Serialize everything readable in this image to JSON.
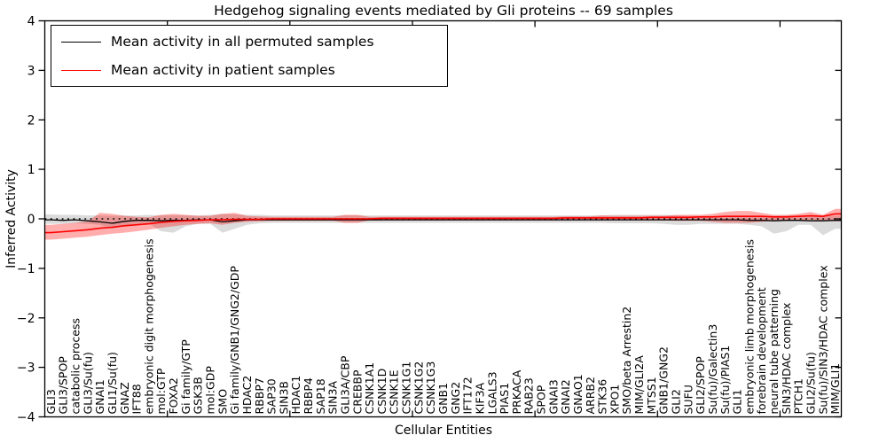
{
  "title": "Hedgehog signaling events mediated by Gli proteins -- 69 samples",
  "legend": {
    "entries": [
      {
        "label": "Mean activity in all permuted samples",
        "color": "#000000"
      },
      {
        "label": "Mean activity in patient samples",
        "color": "#ff0000"
      }
    ]
  },
  "axes": {
    "xlabel": "Cellular Entities",
    "ylabel": "Inferred Activity",
    "yticks": [
      "4",
      "3",
      "2",
      "1",
      "0",
      "−1",
      "−2",
      "−3",
      "−4"
    ],
    "ylim": [
      -4,
      4
    ]
  },
  "chart_data": {
    "type": "line",
    "title": "Hedgehog signaling events mediated by Gli proteins -- 69 samples",
    "xlabel": "Cellular Entities",
    "ylabel": "Inferred Activity",
    "ylim": [
      -4,
      4
    ],
    "grid": false,
    "legend_position": "upper left",
    "zero_reference_line": true,
    "categories": [
      "GLI3",
      "GLI3/SPOP",
      "catabolic process",
      "GLI3/Su(fu)",
      "GNAI1",
      "GLI1/Su(fu)",
      "GNAZ",
      "IFT88",
      "embryonic digit morphogenesis",
      "mol:GTP",
      "FOXA2",
      "Gi family/GTP",
      "GSK3B",
      "mol:GDP",
      "SMO",
      "Gi family/GNB1/GNG2/GDP",
      "HDAC2",
      "RBBP7",
      "SAP30",
      "SIN3B",
      "HDAC1",
      "RBBP4",
      "SAP18",
      "SIN3A",
      "GLI3A/CBP",
      "CREBBP",
      "CSNK1A1",
      "CSNK1D",
      "CSNK1E",
      "CSNK1G1",
      "CSNK1G2",
      "CSNK1G3",
      "GNB1",
      "GNG2",
      "IFT172",
      "KIF3A",
      "LGALS3",
      "PIAS1",
      "PRKACA",
      "RAB23",
      "SPOP",
      "GNAI3",
      "GNAI2",
      "GNAO1",
      "ARRB2",
      "STK36",
      "XPO1",
      "SMO/beta Arrestin2",
      "MIM/GLI2A",
      "MTSS1",
      "GNB1/GNG2",
      "GLI2",
      "SUFU",
      "GLI2/SPOP",
      "Su(fu)/Galectin3",
      "Su(fu)/PIAS1",
      "GLI1",
      "embryonic limb morphogenesis",
      "forebrain development",
      "neural tube patterning",
      "SIN3/HDAC complex",
      "PTCH1",
      "GLI2/Su(fu)",
      "Su(fu)/SIN3/HDAC complex",
      "MIM/GLI1"
    ],
    "series": [
      {
        "name": "Mean activity in all permuted samples",
        "color": "#000000",
        "band_color": "#999999",
        "band_opacity": 0.35,
        "values": [
          -0.02,
          -0.03,
          -0.02,
          -0.04,
          -0.06,
          -0.09,
          -0.05,
          -0.03,
          -0.03,
          -0.04,
          -0.03,
          -0.03,
          -0.02,
          -0.02,
          -0.06,
          -0.04,
          -0.02,
          -0.02,
          -0.02,
          -0.02,
          -0.02,
          -0.02,
          -0.02,
          -0.02,
          -0.02,
          -0.02,
          -0.02,
          -0.02,
          -0.02,
          -0.02,
          -0.02,
          -0.02,
          -0.02,
          -0.02,
          -0.02,
          -0.02,
          -0.02,
          -0.02,
          -0.02,
          -0.02,
          -0.02,
          -0.02,
          -0.02,
          -0.02,
          -0.02,
          -0.02,
          -0.02,
          -0.02,
          -0.02,
          -0.02,
          -0.02,
          -0.02,
          -0.02,
          -0.02,
          -0.02,
          -0.02,
          -0.02,
          -0.03,
          -0.03,
          -0.04,
          -0.03,
          -0.03,
          -0.04,
          -0.04,
          -0.03
        ],
        "band_hi": [
          0.09,
          0.08,
          0.08,
          0.07,
          0.07,
          0.06,
          0.07,
          0.07,
          0.08,
          0.07,
          0.07,
          0.07,
          0.07,
          0.08,
          0.1,
          0.09,
          0.08,
          0.08,
          0.07,
          0.07,
          0.07,
          0.07,
          0.07,
          0.07,
          0.07,
          0.07,
          0.07,
          0.07,
          0.07,
          0.07,
          0.07,
          0.07,
          0.07,
          0.07,
          0.07,
          0.07,
          0.07,
          0.07,
          0.07,
          0.07,
          0.07,
          0.07,
          0.07,
          0.07,
          0.07,
          0.07,
          0.08,
          0.08,
          0.08,
          0.08,
          0.08,
          0.07,
          0.06,
          0.06,
          0.06,
          0.06,
          0.06,
          0.06,
          0.06,
          0.06,
          0.07,
          0.06,
          0.06,
          0.06,
          0.06
        ],
        "band_lo": [
          -0.1,
          -0.1,
          -0.09,
          -0.1,
          -0.12,
          -0.2,
          -0.14,
          -0.1,
          -0.1,
          -0.25,
          -0.28,
          -0.15,
          -0.1,
          -0.1,
          -0.28,
          -0.2,
          -0.12,
          -0.09,
          -0.08,
          -0.08,
          -0.08,
          -0.08,
          -0.08,
          -0.08,
          -0.08,
          -0.08,
          -0.08,
          -0.08,
          -0.08,
          -0.08,
          -0.08,
          -0.08,
          -0.08,
          -0.08,
          -0.08,
          -0.08,
          -0.08,
          -0.08,
          -0.08,
          -0.08,
          -0.08,
          -0.08,
          -0.08,
          -0.08,
          -0.08,
          -0.08,
          -0.09,
          -0.09,
          -0.09,
          -0.09,
          -0.1,
          -0.12,
          -0.12,
          -0.1,
          -0.1,
          -0.1,
          -0.1,
          -0.12,
          -0.15,
          -0.3,
          -0.25,
          -0.12,
          -0.12,
          -0.33,
          -0.2
        ]
      },
      {
        "name": "Mean activity in patient samples",
        "color": "#ff0000",
        "band_color": "#ff0000",
        "band_opacity": 0.32,
        "values": [
          -0.28,
          -0.26,
          -0.24,
          -0.22,
          -0.19,
          -0.17,
          -0.14,
          -0.12,
          -0.1,
          -0.07,
          -0.05,
          -0.04,
          -0.03,
          -0.02,
          -0.02,
          -0.01,
          -0.01,
          -0.01,
          0.0,
          0.0,
          0.0,
          0.0,
          0.0,
          0.0,
          0.0,
          0.0,
          0.0,
          0.01,
          0.01,
          0.01,
          0.01,
          0.01,
          0.01,
          0.01,
          0.01,
          0.01,
          0.01,
          0.01,
          0.01,
          0.01,
          0.01,
          0.01,
          0.02,
          0.02,
          0.02,
          0.02,
          0.02,
          0.02,
          0.02,
          0.03,
          0.03,
          0.03,
          0.03,
          0.04,
          0.04,
          0.05,
          0.05,
          0.05,
          0.05,
          0.04,
          0.04,
          0.05,
          0.06,
          0.05,
          0.1
        ],
        "band_hi": [
          -0.12,
          -0.1,
          -0.08,
          -0.05,
          0.12,
          0.1,
          0.06,
          0.04,
          0.03,
          0.08,
          0.1,
          0.08,
          0.06,
          0.06,
          0.1,
          0.12,
          0.06,
          0.05,
          0.04,
          0.04,
          0.04,
          0.04,
          0.04,
          0.04,
          0.08,
          0.08,
          0.04,
          0.04,
          0.04,
          0.04,
          0.04,
          0.04,
          0.04,
          0.04,
          0.04,
          0.04,
          0.04,
          0.04,
          0.04,
          0.04,
          0.04,
          0.04,
          0.05,
          0.05,
          0.05,
          0.07,
          0.06,
          0.06,
          0.06,
          0.06,
          0.06,
          0.08,
          0.08,
          0.08,
          0.1,
          0.14,
          0.16,
          0.16,
          0.12,
          0.08,
          0.08,
          0.1,
          0.14,
          0.08,
          0.2
        ],
        "band_lo": [
          -0.42,
          -0.4,
          -0.38,
          -0.36,
          -0.33,
          -0.3,
          -0.28,
          -0.25,
          -0.22,
          -0.18,
          -0.15,
          -0.12,
          -0.1,
          -0.09,
          -0.12,
          -0.08,
          -0.06,
          -0.05,
          -0.04,
          -0.04,
          -0.04,
          -0.04,
          -0.04,
          -0.04,
          -0.08,
          -0.08,
          -0.03,
          -0.03,
          -0.03,
          -0.03,
          -0.03,
          -0.03,
          -0.03,
          -0.03,
          -0.03,
          -0.03,
          -0.03,
          -0.03,
          -0.03,
          -0.03,
          -0.03,
          -0.03,
          -0.03,
          -0.03,
          -0.03,
          -0.03,
          -0.03,
          -0.03,
          -0.03,
          -0.03,
          -0.03,
          -0.04,
          -0.04,
          -0.04,
          -0.06,
          -0.08,
          -0.08,
          -0.08,
          -0.06,
          -0.04,
          -0.04,
          -0.03,
          -0.02,
          -0.03,
          -0.05
        ]
      }
    ]
  }
}
